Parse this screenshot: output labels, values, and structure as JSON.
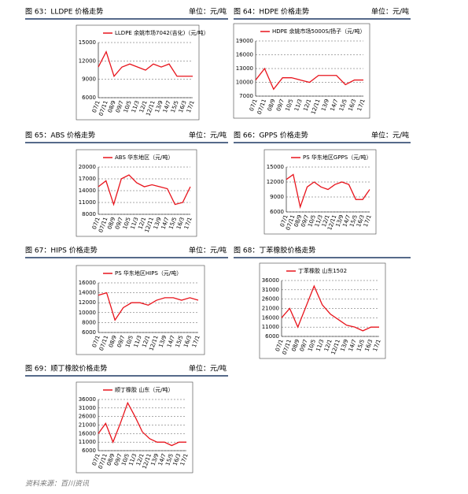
{
  "chart_data": [
    {
      "type": "line",
      "caption": "图 63：LLDPE 价格走势",
      "unit": "单位：元/吨",
      "categories": [
        "07/1",
        "07/11",
        "08/9",
        "09/7",
        "10/5",
        "11/3",
        "12/1",
        "12/11",
        "13/9",
        "14/7",
        "15/5",
        "16/3",
        "17/1"
      ],
      "series": [
        {
          "name": "LLDPE 余姚市场7042(吉化)（元/吨）",
          "color": "#e8141c",
          "values": [
            11000,
            13500,
            9500,
            11000,
            11500,
            11000,
            10500,
            11500,
            11000,
            11500,
            9500,
            9500,
            9500
          ]
        }
      ],
      "ylim": [
        6000,
        15000
      ],
      "yticks": [
        6000,
        9000,
        12000,
        15000
      ],
      "grid": true
    },
    {
      "type": "line",
      "caption": "图 64：HDPE 价格走势",
      "unit": "单位：元/吨",
      "categories": [
        "07/1",
        "07/11",
        "08/9",
        "09/7",
        "10/5",
        "11/3",
        "12/1",
        "12/11",
        "13/9",
        "14/7",
        "15/5",
        "16/3",
        "17/1"
      ],
      "series": [
        {
          "name": "HDPE 余姚市场5000S/扬子（元/吨）",
          "color": "#e8141c",
          "values": [
            10500,
            13000,
            8500,
            11000,
            11000,
            10500,
            10000,
            11500,
            11500,
            11500,
            9500,
            10500,
            10500
          ]
        }
      ],
      "ylim": [
        7000,
        19000
      ],
      "yticks": [
        7000,
        10000,
        13000,
        16000,
        19000
      ],
      "grid": true
    },
    {
      "type": "line",
      "caption": "图 65：ABS 价格走势",
      "unit": "单位：元/吨",
      "categories": [
        "07/1",
        "07/11",
        "08/9",
        "09/7",
        "10/5",
        "11/3",
        "12/1",
        "12/11",
        "13/9",
        "14/7",
        "15/5",
        "16/3",
        "17/1"
      ],
      "series": [
        {
          "name": "ABS 华东地区（元/吨）",
          "color": "#e8141c",
          "values": [
            15000,
            16500,
            10500,
            17000,
            18000,
            16000,
            15000,
            15500,
            15000,
            14500,
            10500,
            11000,
            15000
          ]
        }
      ],
      "ylim": [
        8000,
        20000
      ],
      "yticks": [
        8000,
        11000,
        14000,
        17000,
        20000
      ],
      "grid": true
    },
    {
      "type": "line",
      "caption": "图 66：GPPS 价格走势",
      "unit": "单位：元/吨",
      "categories": [
        "07/1",
        "07/11",
        "08/9",
        "09/7",
        "10/5",
        "11/3",
        "12/1",
        "12/11",
        "13/9",
        "14/7",
        "15/5",
        "16/3",
        "17/1"
      ],
      "series": [
        {
          "name": "PS 华东地区GPPS（元/吨）",
          "color": "#e8141c",
          "values": [
            12500,
            13500,
            7000,
            11000,
            12000,
            11000,
            10500,
            11500,
            12000,
            11500,
            8500,
            8500,
            10500
          ]
        }
      ],
      "ylim": [
        6000,
        15000
      ],
      "yticks": [
        6000,
        9000,
        12000,
        15000
      ],
      "grid": true
    },
    {
      "type": "line",
      "caption": "图 67：HIPS 价格走势",
      "unit": "单位：元/吨",
      "categories": [
        "07/1",
        "07/11",
        "08/9",
        "09/7",
        "10/5",
        "11/3",
        "12/1",
        "12/11",
        "13/9",
        "14/7",
        "15/5",
        "16/3",
        "17/1"
      ],
      "series": [
        {
          "name": "PS 华东地区HIPS（元/吨）",
          "color": "#e8141c",
          "values": [
            13500,
            14000,
            8500,
            11000,
            12000,
            12000,
            11500,
            12500,
            13000,
            13000,
            12500,
            13000,
            12500
          ]
        }
      ],
      "ylim": [
        6000,
        16000
      ],
      "yticks": [
        6000,
        8000,
        10000,
        12000,
        14000,
        16000
      ],
      "grid": true
    },
    {
      "type": "line",
      "caption": "图 68：丁苯橡胶价格走势",
      "categories": [
        "07/1",
        "07/11",
        "08/9",
        "09/7",
        "10/5",
        "11/3",
        "12/1",
        "12/11",
        "13/9",
        "14/7",
        "15/5",
        "16/3",
        "17/1"
      ],
      "series": [
        {
          "name": "丁苯橡胶 山东1502",
          "color": "#e8141c",
          "values": [
            16000,
            21000,
            11000,
            22000,
            33000,
            23000,
            18000,
            15000,
            12000,
            11000,
            9000,
            11000,
            11000
          ]
        }
      ],
      "ylim": [
        6000,
        36000
      ],
      "yticks": [
        6000,
        11000,
        16000,
        21000,
        26000,
        31000,
        36000
      ],
      "grid": true
    },
    {
      "type": "line",
      "caption": "图 69：顺丁橡胶价格走势",
      "unit": "单位：元/吨",
      "categories": [
        "07/1",
        "07/11",
        "08/9",
        "09/7",
        "10/5",
        "11/3",
        "12/1",
        "12/11",
        "13/9",
        "14/7",
        "15/5",
        "16/3",
        "17/1"
      ],
      "series": [
        {
          "name": "顺丁橡胶 山东（元/吨）",
          "color": "#e8141c",
          "values": [
            16000,
            22000,
            11000,
            22000,
            34000,
            26000,
            17000,
            13000,
            11000,
            11000,
            9000,
            11000,
            11000
          ]
        }
      ],
      "ylim": [
        6000,
        36000
      ],
      "yticks": [
        6000,
        11000,
        16000,
        21000,
        26000,
        31000,
        36000
      ],
      "grid": true
    }
  ],
  "footer": "资料来源：百川资讯"
}
